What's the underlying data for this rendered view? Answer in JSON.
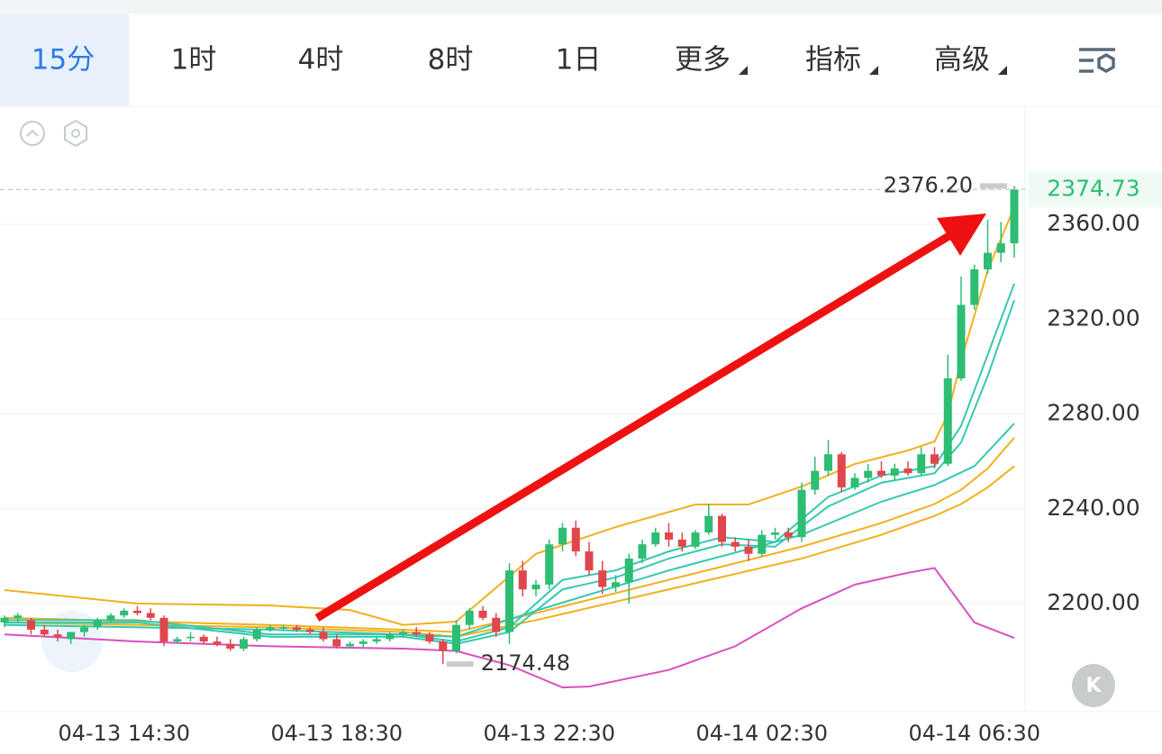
{
  "tabs": [
    "15分",
    "1时",
    "4时",
    "8时",
    "1日",
    "更多",
    "指标",
    "高级"
  ],
  "active_tab": 0,
  "chart_data": {
    "type": "candlestick",
    "categories": [
      null,
      null,
      null,
      null,
      null,
      null,
      null,
      null,
      null,
      "04-13 14:30",
      null,
      null,
      null,
      null,
      null,
      null,
      null,
      null,
      null,
      null,
      null,
      null,
      null,
      null,
      null,
      "04-13 18:30",
      null,
      null,
      null,
      null,
      null,
      null,
      null,
      null,
      null,
      null,
      null,
      null,
      null,
      null,
      null,
      "04-13 22:30",
      null,
      null,
      null,
      null,
      null,
      null,
      null,
      null,
      null,
      null,
      null,
      null,
      null,
      null,
      null,
      "04-14 02:30",
      null,
      null,
      null,
      null,
      null,
      null,
      null,
      null,
      null,
      null,
      null,
      null,
      null,
      null,
      null,
      "04-14 06:30",
      null,
      null,
      null
    ],
    "open": [
      2192,
      2194,
      2193,
      2189,
      2187,
      2185,
      2188,
      2190,
      2193,
      2195,
      2197,
      2196,
      2194,
      2184,
      2186,
      2186,
      2184,
      2183,
      2181,
      2185,
      2189,
      2190,
      2190,
      2189,
      2188,
      2185,
      2182,
      2183,
      2184,
      2185,
      2187,
      2188,
      2187,
      2184,
      2180,
      2191,
      2197,
      2194,
      2188,
      2214,
      2206,
      2208,
      2225,
      2232,
      2222,
      2214,
      2207,
      2209,
      2219,
      2225,
      2230,
      2227,
      2224,
      2230,
      2237,
      2226,
      2224,
      2221,
      2229,
      2230,
      2228,
      2248,
      2256,
      2263,
      2249,
      2253,
      2256,
      2254,
      2257,
      2255,
      2263,
      2259,
      2295,
      2326,
      2341,
      2348,
      2352
    ],
    "high": [
      2195,
      2196,
      2194,
      2191,
      2189,
      2188,
      2191,
      2194,
      2196,
      2198,
      2199,
      2198,
      2195,
      2186,
      2188,
      2187,
      2186,
      2185,
      2186,
      2190,
      2191,
      2191,
      2191,
      2190,
      2190,
      2187,
      2184,
      2185,
      2186,
      2188,
      2189,
      2190,
      2188,
      2185,
      2193,
      2198,
      2199,
      2196,
      2217,
      2218,
      2210,
      2227,
      2234,
      2235,
      2226,
      2218,
      2212,
      2221,
      2227,
      2232,
      2234,
      2230,
      2231,
      2242,
      2238,
      2228,
      2227,
      2231,
      2232,
      2232,
      2251,
      2262,
      2269,
      2264,
      2255,
      2259,
      2260,
      2259,
      2260,
      2266,
      2266,
      2305,
      2338,
      2343,
      2362,
      2361,
      2376.2
    ],
    "low": [
      2190,
      2192,
      2187,
      2186,
      2184,
      2183,
      2186,
      2189,
      2192,
      2194,
      2195,
      2193,
      2182,
      2183,
      2184,
      2183,
      2182,
      2180,
      2180,
      2184,
      2188,
      2189,
      2188,
      2187,
      2184,
      2181,
      2181,
      2181,
      2183,
      2184,
      2186,
      2186,
      2183,
      2174.48,
      2179,
      2189,
      2193,
      2186,
      2183,
      2203,
      2203,
      2206,
      2222,
      2220,
      2212,
      2204,
      2205,
      2200,
      2217,
      2224,
      2224,
      2222,
      2223,
      2229,
      2224,
      2222,
      2218,
      2220,
      2227,
      2226,
      2226,
      2246,
      2254,
      2247,
      2248,
      2251,
      2253,
      2252,
      2254,
      2254,
      2257,
      2258,
      2294,
      2324,
      2339,
      2344,
      2346
    ],
    "close": [
      2194,
      2195,
      2189,
      2187,
      2186,
      2188,
      2190,
      2193,
      2195,
      2197,
      2196,
      2194,
      2184,
      2185,
      2186,
      2184,
      2183,
      2181,
      2185,
      2189,
      2190,
      2190,
      2189,
      2188,
      2185,
      2182,
      2183,
      2184,
      2185,
      2187,
      2188,
      2187,
      2184,
      2180,
      2191,
      2197,
      2194,
      2188,
      2214,
      2206,
      2208,
      2225,
      2232,
      2222,
      2214,
      2207,
      2209,
      2219,
      2225,
      2230,
      2227,
      2224,
      2230,
      2237,
      2226,
      2224,
      2221,
      2229,
      2230,
      2228,
      2248,
      2256,
      2263,
      2249,
      2253,
      2256,
      2254,
      2257,
      2255,
      2263,
      2259,
      2295,
      2326,
      2341,
      2348,
      2352,
      2374.73
    ],
    "up_color": "#2dbd73",
    "down_color": "#e0474c",
    "lines": [
      {
        "color": "#f2b01e",
        "x": [
          0,
          10,
          20,
          26,
          30,
          34,
          40,
          46,
          52,
          56,
          60,
          64,
          68,
          70,
          71,
          72,
          74,
          76
        ],
        "values": [
          2205.7,
          2200,
          2199.2,
          2197.3,
          2191,
          2192.4,
          2221,
          2232.3,
          2241.8,
          2241.8,
          2249.4,
          2258.9,
          2264.6,
          2268.4,
          2279.8,
          2302.6,
          2340.6,
          2367.2
        ]
      },
      {
        "color": "#f2b01e",
        "x": [
          0,
          20,
          30,
          34,
          40,
          50,
          60,
          66,
          70,
          72,
          74,
          76
        ],
        "values": [
          2194,
          2191,
          2189,
          2188,
          2196,
          2210,
          2224,
          2234,
          2242,
          2248,
          2257,
          2270
        ]
      },
      {
        "color": "#f2b01e",
        "x": [
          0,
          20,
          30,
          34,
          40,
          50,
          60,
          66,
          70,
          72,
          74,
          76
        ],
        "values": [
          2192,
          2190,
          2188,
          2186,
          2193,
          2206,
          2219,
          2229,
          2237,
          2242,
          2249,
          2258
        ]
      },
      {
        "color": "#35c9b0",
        "x": [
          0,
          20,
          34,
          40,
          50,
          60,
          66,
          70,
          73,
          76
        ],
        "values": [
          2191,
          2189,
          2186,
          2197,
          2214,
          2229,
          2243,
          2250,
          2258,
          2276
        ]
      },
      {
        "color": "#35c9b0",
        "x": [
          0,
          10,
          20,
          30,
          34,
          38,
          42,
          46,
          50,
          54,
          58,
          62,
          66,
          70,
          72,
          74,
          76
        ],
        "values": [
          2193,
          2193,
          2187,
          2187,
          2184,
          2190,
          2210,
          2214,
          2222,
          2228,
          2226,
          2245,
          2254,
          2258,
          2275,
          2305,
          2335
        ]
      },
      {
        "color": "#35c9b0",
        "x": [
          0,
          10,
          20,
          30,
          34,
          38,
          42,
          46,
          50,
          54,
          58,
          62,
          66,
          70,
          72,
          74,
          76
        ],
        "values": [
          2192,
          2192,
          2186,
          2186,
          2183,
          2188,
          2206,
          2211,
          2219,
          2225,
          2224,
          2241,
          2251,
          2255,
          2268,
          2296,
          2328
        ]
      },
      {
        "color": "#d94fbf",
        "x": [
          0,
          10,
          20,
          30,
          34,
          38,
          42,
          44,
          50,
          55,
          60,
          64,
          68,
          70,
          73,
          76
        ],
        "values": [
          2187,
          2184,
          2182,
          2181,
          2180,
          2174,
          2164.6,
          2165,
          2172,
          2182,
          2198,
          2208,
          2213,
          2215,
          2192,
          2185.5
        ]
      }
    ],
    "ylim": [
      2154.4,
      2409.8
    ],
    "yticks": [
      {
        "value": 2200,
        "label": "2200.00"
      },
      {
        "value": 2240,
        "label": "2240.00"
      },
      {
        "value": 2280,
        "label": "2280.00"
      },
      {
        "value": 2320,
        "label": "2320.00"
      },
      {
        "value": 2360,
        "label": "2360.00"
      }
    ],
    "max_label": {
      "value": 2376.2,
      "label": "2376.20"
    },
    "min_label": {
      "value": 2174.48,
      "label": "2174.48"
    },
    "last_price": 2374.73
  }
}
